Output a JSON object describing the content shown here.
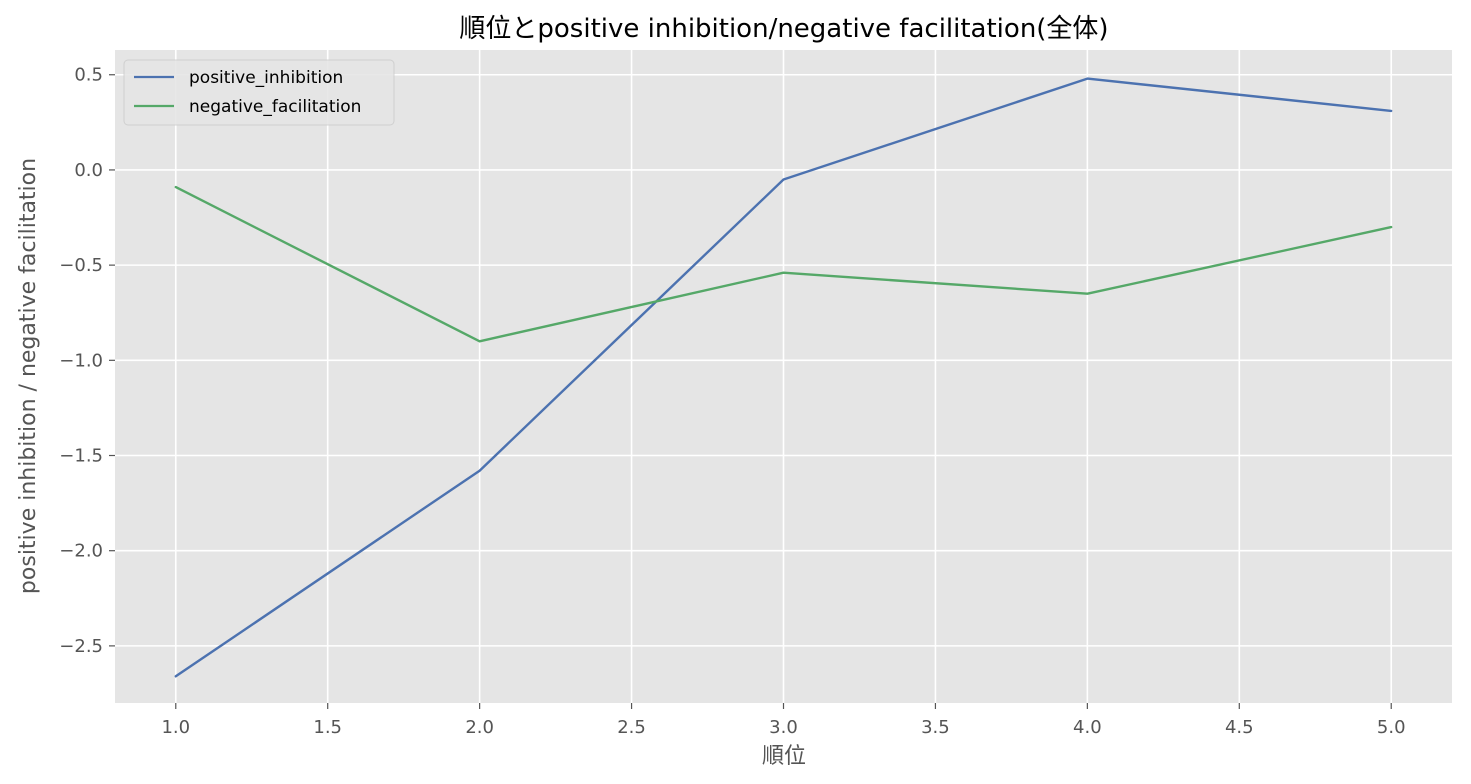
{
  "chart_data": {
    "type": "line",
    "title": "順位とpositive inhibition/negative facilitation(全体)",
    "xlabel": "順位",
    "ylabel": "positive inhibition / negative facilitation",
    "x": [
      1.0,
      2.0,
      3.0,
      4.0,
      5.0
    ],
    "xlim": [
      0.8,
      5.2
    ],
    "ylim": [
      -2.8,
      0.63
    ],
    "xticks": [
      1.0,
      1.5,
      2.0,
      2.5,
      3.0,
      3.5,
      4.0,
      4.5,
      5.0
    ],
    "xtick_labels": [
      "1.0",
      "1.5",
      "2.0",
      "2.5",
      "3.0",
      "3.5",
      "4.0",
      "4.5",
      "5.0"
    ],
    "yticks": [
      0.5,
      0.0,
      -0.5,
      -1.0,
      -1.5,
      -2.0,
      -2.5
    ],
    "ytick_labels": [
      "0.5",
      "0.0",
      "−0.5",
      "−1.0",
      "−1.5",
      "−2.0",
      "−2.5"
    ],
    "grid": true,
    "legend_position": "top-left",
    "background": "#e5e5e5",
    "series": [
      {
        "name": "positive_inhibition",
        "color": "#4c72b0",
        "values": [
          -2.66,
          -1.58,
          -0.05,
          0.48,
          0.31
        ]
      },
      {
        "name": "negative_facilitation",
        "color": "#55a868",
        "values": [
          -0.09,
          -0.9,
          -0.54,
          -0.65,
          -0.3
        ]
      }
    ]
  }
}
